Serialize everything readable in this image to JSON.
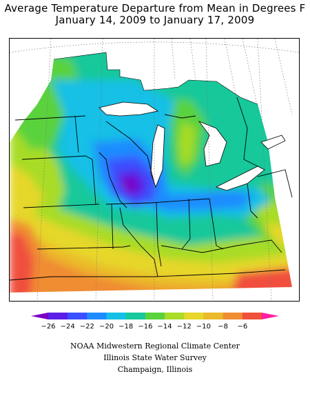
{
  "header": {
    "title_line1": "Average Temperature Departure from Mean in Degrees F",
    "title_line2": "January 14, 2009 to January 17, 2009"
  },
  "legend": {
    "ticks": [
      "-26",
      "-24",
      "-22",
      "-20",
      "-18",
      "-16",
      "-14",
      "-12",
      "-10",
      "-8",
      "-6"
    ],
    "colors": [
      "#7a00c4",
      "#5a1ee6",
      "#3a50ff",
      "#1e8cff",
      "#14c0e6",
      "#16c89a",
      "#5ad23c",
      "#a8dc28",
      "#e6d72a",
      "#ebb92c",
      "#f08c32",
      "#f0503c",
      "#ff1ea0"
    ]
  },
  "credits": {
    "line1": "NOAA Midwestern Regional Climate Center",
    "line2": "Illinois State Water Survey",
    "line3": "Champaign, Illinois"
  }
}
